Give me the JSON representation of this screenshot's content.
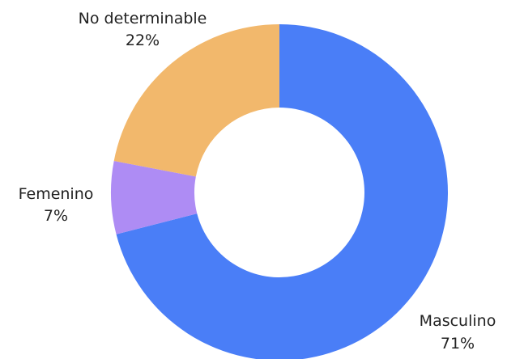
{
  "chart_data": {
    "type": "pie",
    "variant": "donut",
    "title": "",
    "start": "top",
    "direction": "clockwise",
    "slices": [
      {
        "label": "Masculino",
        "value": 71,
        "value_label": "71%",
        "color": "#4a7ef7"
      },
      {
        "label": "Femenino",
        "value": 7,
        "value_label": "7%",
        "color": "#ae8cf4"
      },
      {
        "label": "No determinable",
        "value": 22,
        "value_label": "22%",
        "color": "#f2b86c"
      }
    ]
  }
}
